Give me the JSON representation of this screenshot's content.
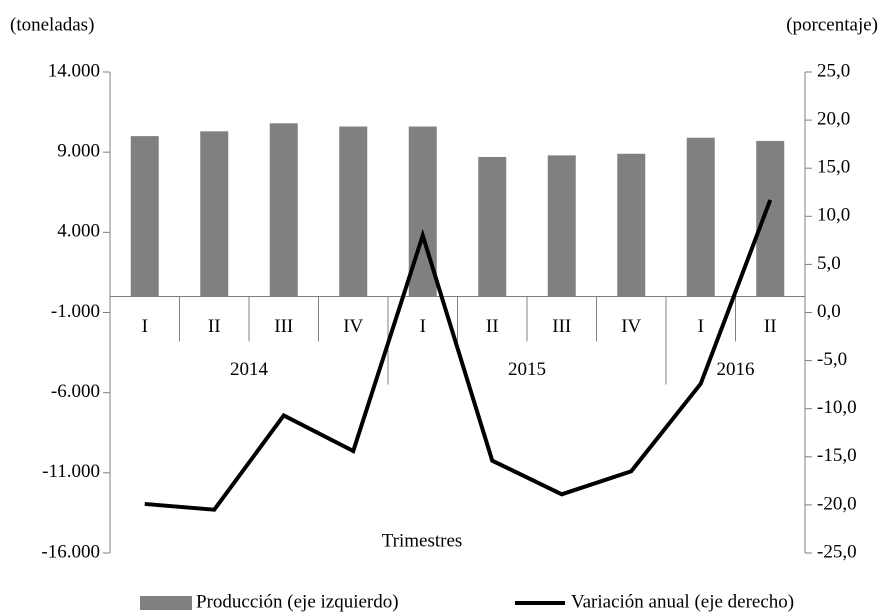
{
  "chart_data": {
    "type": "bar",
    "y_label": "(toneladas)",
    "y2_label": "(porcentaje)",
    "x_label": "Trimestres",
    "groups": [
      {
        "label": "2014",
        "categories": [
          "I",
          "II",
          "III",
          "IV"
        ]
      },
      {
        "label": "2015",
        "categories": [
          "I",
          "II",
          "III",
          "IV"
        ]
      },
      {
        "label": "2016",
        "categories": [
          "I",
          "II"
        ]
      }
    ],
    "series": [
      {
        "name": "Producción (eje izquierdo)",
        "type": "bar",
        "color": "#808080",
        "axis": "y",
        "values": [
          10000,
          10300,
          10800,
          10600,
          10600,
          8700,
          8800,
          8900,
          9900,
          9700
        ]
      },
      {
        "name": "Variación anual (eje derecho)",
        "type": "line",
        "color": "#000000",
        "axis": "y2",
        "values": [
          -19.9,
          -20.5,
          -10.7,
          -14.4,
          8.0,
          -15.4,
          -18.9,
          -16.5,
          -7.4,
          11.7
        ]
      }
    ],
    "ylim": [
      -16000,
      14000
    ],
    "yticks": [
      {
        "value": -16000,
        "label": "-16.000"
      },
      {
        "value": -11000,
        "label": "-11.000"
      },
      {
        "value": -6000,
        "label": "-6.000"
      },
      {
        "value": -1000,
        "label": "-1.000"
      },
      {
        "value": 4000,
        "label": "4.000"
      },
      {
        "value": 9000,
        "label": "9.000"
      },
      {
        "value": 14000,
        "label": "14.000"
      }
    ],
    "y2lim": [
      -25,
      25
    ],
    "y2ticks": [
      {
        "value": -25,
        "label": "-25,0"
      },
      {
        "value": -20,
        "label": "-20,0"
      },
      {
        "value": -15,
        "label": "-15,0"
      },
      {
        "value": -10,
        "label": "-10,0"
      },
      {
        "value": -5,
        "label": "-5,0"
      },
      {
        "value": 0,
        "label": "0,0"
      },
      {
        "value": 5,
        "label": "5,0"
      },
      {
        "value": 10,
        "label": "10,0"
      },
      {
        "value": 15,
        "label": "15,0"
      },
      {
        "value": 20,
        "label": "20,0"
      },
      {
        "value": 25,
        "label": "25,0"
      }
    ],
    "grid": false
  }
}
